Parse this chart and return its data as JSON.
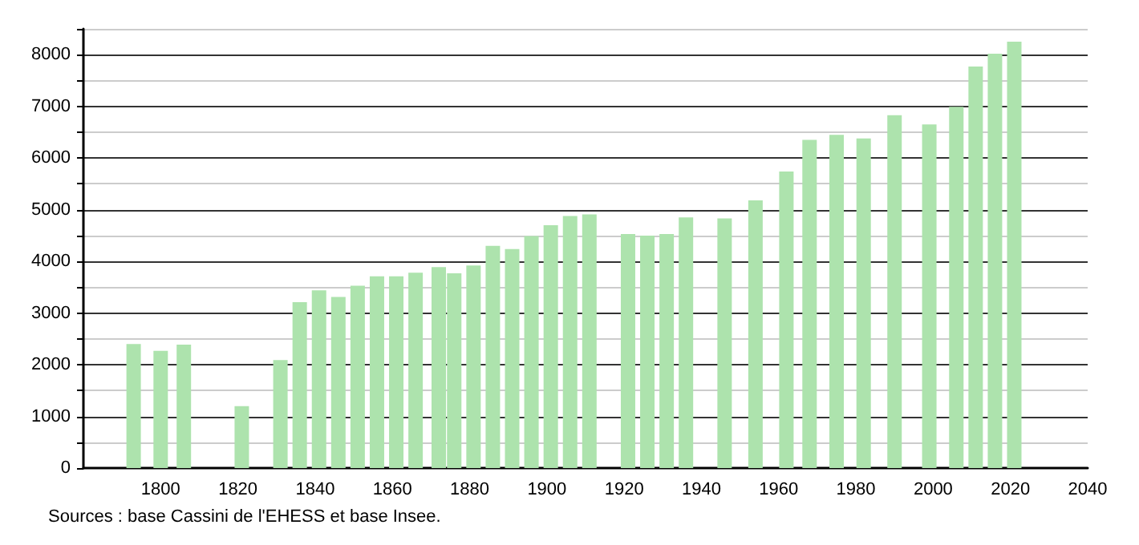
{
  "chart_data": {
    "type": "bar",
    "color": "#ade3ad",
    "x": [
      1793,
      1800,
      1806,
      1821,
      1831,
      1836,
      1841,
      1846,
      1851,
      1856,
      1861,
      1866,
      1872,
      1876,
      1881,
      1886,
      1891,
      1896,
      1901,
      1906,
      1911,
      1921,
      1926,
      1931,
      1936,
      1946,
      1954,
      1962,
      1968,
      1975,
      1982,
      1990,
      1999,
      2006,
      2011,
      2016,
      2021
    ],
    "values": [
      2400,
      2270,
      2390,
      1200,
      2090,
      3210,
      3440,
      3310,
      3530,
      3710,
      3710,
      3780,
      3890,
      3770,
      3920,
      4300,
      4240,
      4490,
      4700,
      4880,
      4910,
      4530,
      4500,
      4530,
      4850,
      4830,
      5180,
      5740,
      6350,
      6450,
      6380,
      6830,
      6650,
      6990,
      7770,
      8020,
      8250
    ],
    "xlim": [
      1780,
      2040
    ],
    "xticks": [
      1800,
      1820,
      1840,
      1860,
      1880,
      1900,
      1920,
      1940,
      1960,
      1980,
      2000,
      2020,
      2040
    ],
    "ylim": [
      0,
      8500
    ],
    "yticks": [
      0,
      {
        "value": 500,
        "label": null
      },
      1000,
      {
        "value": 1500,
        "label": null
      },
      2000,
      {
        "value": 2500,
        "label": null
      },
      3000,
      {
        "value": 3500,
        "label": null
      },
      4000,
      {
        "value": 4500,
        "label": null
      },
      5000,
      {
        "value": 5500,
        "label": null
      },
      6000,
      {
        "value": 6500,
        "label": null
      },
      7000,
      {
        "value": 7500,
        "label": null
      },
      8000,
      {
        "value": 8500,
        "label": null
      }
    ],
    "grid": true,
    "annotations": [
      "Sources : base Cassini de l'EHESS et base Insee."
    ]
  }
}
